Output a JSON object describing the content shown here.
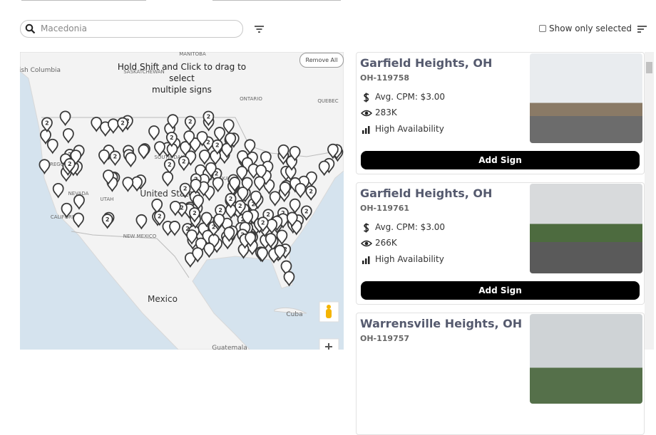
{
  "search": {
    "placeholder": "Macedonia"
  },
  "show_only_selected": "Show only selected",
  "map": {
    "hint_line1": "Hold Shift and Click to drag to select",
    "hint_line2": "multiple signs",
    "remove_all": "Remove All",
    "cluster_label": "2",
    "labels": [
      "British Columbia",
      "MANITOBA",
      "SASKATCHEWAN",
      "ONTARIO",
      "QUEBEC",
      "OREGON",
      "SOUTH DAKOTA",
      "NEBRASKA",
      "NEVADA",
      "UTAH",
      "CALIFORNIA",
      "United States",
      "NEW MEXICO",
      "Mexico",
      "Cuba",
      "Guatemala"
    ]
  },
  "cards": [
    {
      "title": "Garfield Heights, OH",
      "id": "OH-119758",
      "cpm": "Avg. CPM: $3.00",
      "impressions": "283K",
      "availability": "High Availability",
      "button": "Add Sign"
    },
    {
      "title": "Garfield Heights, OH",
      "id": "OH-119761",
      "cpm": "Avg. CPM: $3.00",
      "impressions": "266K",
      "availability": "High Availability",
      "button": "Add Sign"
    },
    {
      "title": "Warrensville Heights, OH",
      "id": "OH-119757"
    }
  ]
}
